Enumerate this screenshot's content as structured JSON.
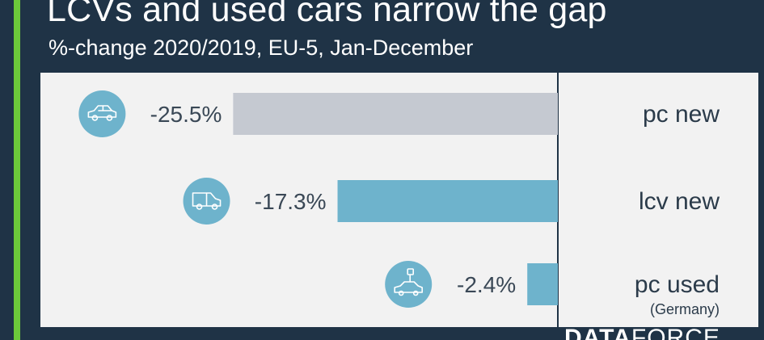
{
  "header": {
    "title": "LCVs and used cars narrow the gap",
    "subtitle": "%-change 2020/2019, EU-5, Jan-December"
  },
  "logo": {
    "part1": "DATA",
    "part2": "FORCE"
  },
  "colors": {
    "background": "#1f3346",
    "accent": "#6cc93a",
    "panel": "#f2f2f2",
    "bar_grey": "#c5c9d1",
    "bar_blue": "#6eb3cc",
    "icon_circle": "#6eb3cc"
  },
  "chart_data": {
    "type": "bar",
    "orientation": "horizontal",
    "categories": [
      "pc new",
      "lcv new",
      "pc used"
    ],
    "category_notes": [
      "",
      "",
      "(Germany)"
    ],
    "values": [
      -25.5,
      -17.3,
      -2.4
    ],
    "value_labels": [
      "-25.5%",
      "-17.3%",
      "-2.4%"
    ],
    "bar_colors": [
      "#c5c9d1",
      "#6eb3cc",
      "#6eb3cc"
    ],
    "icons": [
      "car-icon",
      "van-icon",
      "used-car-icon"
    ],
    "title": "LCVs and used cars narrow the gap",
    "subtitle": "%-change 2020/2019, EU-5, Jan-December",
    "xlabel": "",
    "ylabel": "",
    "grid": false,
    "legend": "none"
  }
}
